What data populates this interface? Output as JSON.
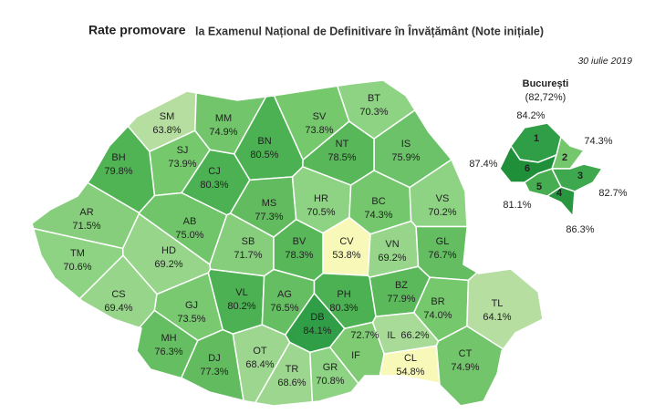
{
  "title": {
    "bold": "Rate promovare",
    "rest": "la Examenul Național de Definitivare în Învățământ (Note inițiale)"
  },
  "date": "30 iulie 2019",
  "counties": [
    {
      "code": "SM",
      "value": "63.8%",
      "color": "#b5dea0"
    },
    {
      "code": "MM",
      "value": "74.9%",
      "color": "#72c56b"
    },
    {
      "code": "BT",
      "value": "70.3%",
      "color": "#8ed283"
    },
    {
      "code": "SV",
      "value": "73.8%",
      "color": "#76c86d"
    },
    {
      "code": "SJ",
      "value": "73.9%",
      "color": "#76c86d"
    },
    {
      "code": "BN",
      "value": "80.5%",
      "color": "#4cb152"
    },
    {
      "code": "IS",
      "value": "75.9%",
      "color": "#6cc268"
    },
    {
      "code": "BH",
      "value": "79.8%",
      "color": "#50b354"
    },
    {
      "code": "CJ",
      "value": "80.3%",
      "color": "#4cb152"
    },
    {
      "code": "NT",
      "value": "78.5%",
      "color": "#58b758"
    },
    {
      "code": "MS",
      "value": "77.3%",
      "color": "#62bc5f"
    },
    {
      "code": "HR",
      "value": "70.5%",
      "color": "#8ed283"
    },
    {
      "code": "BC",
      "value": "74.3%",
      "color": "#74c76c"
    },
    {
      "code": "VS",
      "value": "70.2%",
      "color": "#8ed283"
    },
    {
      "code": "AR",
      "value": "71.5%",
      "color": "#86ce7c"
    },
    {
      "code": "AB",
      "value": "75.0%",
      "color": "#70c56a"
    },
    {
      "code": "CV",
      "value": "53.8%",
      "color": "#f8f8b8"
    },
    {
      "code": "TM",
      "value": "70.6%",
      "color": "#8ed283"
    },
    {
      "code": "HD",
      "value": "69.2%",
      "color": "#97d58a"
    },
    {
      "code": "SB",
      "value": "71.7%",
      "color": "#86ce7c"
    },
    {
      "code": "BV",
      "value": "78.3%",
      "color": "#58b758"
    },
    {
      "code": "VN",
      "value": "69.2%",
      "color": "#97d58a"
    },
    {
      "code": "GL",
      "value": "76.7%",
      "color": "#64bd61"
    },
    {
      "code": "CS",
      "value": "69.4%",
      "color": "#97d58a"
    },
    {
      "code": "GJ",
      "value": "73.5%",
      "color": "#78c96f"
    },
    {
      "code": "VL",
      "value": "80.2%",
      "color": "#4cb152"
    },
    {
      "code": "AG",
      "value": "76.5%",
      "color": "#66be62"
    },
    {
      "code": "DB",
      "value": "84.1%",
      "color": "#2f9e47"
    },
    {
      "code": "PH",
      "value": "80.3%",
      "color": "#4cb152"
    },
    {
      "code": "BZ",
      "value": "77.9%",
      "color": "#5cb95b"
    },
    {
      "code": "BR",
      "value": "74.0%",
      "color": "#76c86d"
    },
    {
      "code": "TL",
      "value": "64.1%",
      "color": "#b5dea0"
    },
    {
      "code": "MH",
      "value": "76.3%",
      "color": "#66be62"
    },
    {
      "code": "OT",
      "value": "68.4%",
      "color": "#9dd78f"
    },
    {
      "code": "DJ",
      "value": "77.3%",
      "color": "#62bc5f"
    },
    {
      "code": "TR",
      "value": "68.6%",
      "color": "#9dd78f"
    },
    {
      "code": "GR",
      "value": "70.8%",
      "color": "#8ed283"
    },
    {
      "code": "IF",
      "value": "72.7%",
      "color": "#7ecb74"
    },
    {
      "code": "IL",
      "value": "66.2%",
      "color": "#a8db98"
    },
    {
      "code": "CL",
      "value": "54.8%",
      "color": "#f8f8b8"
    },
    {
      "code": "CT",
      "value": "74.9%",
      "color": "#72c56b"
    }
  ],
  "bucharest": {
    "name": "București",
    "total": "(82,72%)",
    "sectors": [
      {
        "number": "1",
        "value": "84.2%",
        "color": "#2f9e47"
      },
      {
        "number": "2",
        "value": "74.3%",
        "color": "#74c76c"
      },
      {
        "number": "3",
        "value": "82.7%",
        "color": "#3da84d"
      },
      {
        "number": "4",
        "value": "86.3%",
        "color": "#27963f"
      },
      {
        "number": "5",
        "value": "81.1%",
        "color": "#46ad50"
      },
      {
        "number": "6",
        "value": "87.4%",
        "color": "#1f8f3a"
      }
    ]
  }
}
